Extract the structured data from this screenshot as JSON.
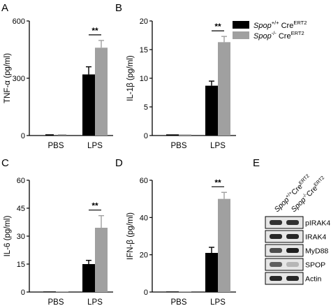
{
  "panel_labels": {
    "A": "A",
    "B": "B",
    "C": "C",
    "D": "D",
    "E": "E"
  },
  "legend": [
    {
      "main": "Spop",
      "sup": "+/+",
      "tail": " Cre",
      "tail_sup": "ERT2",
      "color": "#000000"
    },
    {
      "main": "Spop",
      "sup": "-/-",
      "tail": " Cre",
      "tail_sup": "ERT2",
      "color": "#a0a0a0"
    }
  ],
  "chart_data": [
    {
      "panel": "A",
      "type": "bar",
      "ylabel": "TNF-α (pg/ml)",
      "categories": [
        "PBS",
        "LPS"
      ],
      "ylim": [
        0,
        600
      ],
      "yticks": [
        0,
        300,
        600
      ],
      "series": [
        {
          "values": [
            0,
            320
          ],
          "errors": [
            0,
            40
          ],
          "color": "#000000"
        },
        {
          "values": [
            0,
            460
          ],
          "errors": [
            0,
            38
          ],
          "color": "#a0a0a0"
        }
      ],
      "significance": [
        {
          "category": "LPS",
          "label": "**"
        }
      ]
    },
    {
      "panel": "B",
      "type": "bar",
      "ylabel": "IL-1β (pg/ml)",
      "categories": [
        "PBS",
        "LPS"
      ],
      "ylim": [
        0,
        20
      ],
      "yticks": [
        0,
        5,
        10,
        15,
        20
      ],
      "series": [
        {
          "values": [
            0.2,
            8.7
          ],
          "errors": [
            0.1,
            0.8
          ],
          "color": "#000000"
        },
        {
          "values": [
            0.2,
            16.3
          ],
          "errors": [
            0.1,
            1.0
          ],
          "color": "#a0a0a0"
        }
      ],
      "significance": [
        {
          "category": "LPS",
          "label": "**"
        }
      ]
    },
    {
      "panel": "C",
      "type": "bar",
      "ylabel": "IL-6 (pg/ml)",
      "categories": [
        "PBS",
        "LPS"
      ],
      "ylim": [
        0,
        60
      ],
      "yticks": [
        0,
        15,
        30,
        45,
        60
      ],
      "series": [
        {
          "values": [
            0.3,
            15
          ],
          "errors": [
            0.1,
            2
          ],
          "color": "#000000"
        },
        {
          "values": [
            0.3,
            34.5
          ],
          "errors": [
            0.1,
            6.5
          ],
          "color": "#a0a0a0"
        }
      ],
      "significance": [
        {
          "category": "LPS",
          "label": "**"
        }
      ]
    },
    {
      "panel": "D",
      "type": "bar",
      "ylabel": "IFN-β (pg/ml)",
      "categories": [
        "PBS",
        "LPS"
      ],
      "ylim": [
        0,
        60
      ],
      "yticks": [
        0,
        20,
        40,
        60
      ],
      "series": [
        {
          "values": [
            0.3,
            21
          ],
          "errors": [
            0.1,
            3
          ],
          "color": "#000000"
        },
        {
          "values": [
            0.3,
            50
          ],
          "errors": [
            0.1,
            3.5
          ],
          "color": "#a0a0a0"
        }
      ],
      "significance": [
        {
          "category": "LPS",
          "label": "**"
        }
      ]
    }
  ],
  "blot": {
    "columns": [
      {
        "main": "Spop",
        "sup": "+/+",
        "tail": "Cre",
        "tail_sup": "ERT2"
      },
      {
        "main": "Spop",
        "sup": "-/-",
        "tail": "Cre",
        "tail_sup": "ERT2"
      }
    ],
    "rows": [
      {
        "label": "pIRAK4",
        "intensity": [
          0.85,
          0.85
        ]
      },
      {
        "label": "IRAK4",
        "intensity": [
          0.9,
          0.9
        ]
      },
      {
        "label": "MyD88",
        "intensity": [
          0.7,
          0.95
        ]
      },
      {
        "label": "SPOP",
        "intensity": [
          0.6,
          0.15
        ]
      },
      {
        "label": "Actin",
        "intensity": [
          0.9,
          0.9
        ]
      }
    ]
  }
}
